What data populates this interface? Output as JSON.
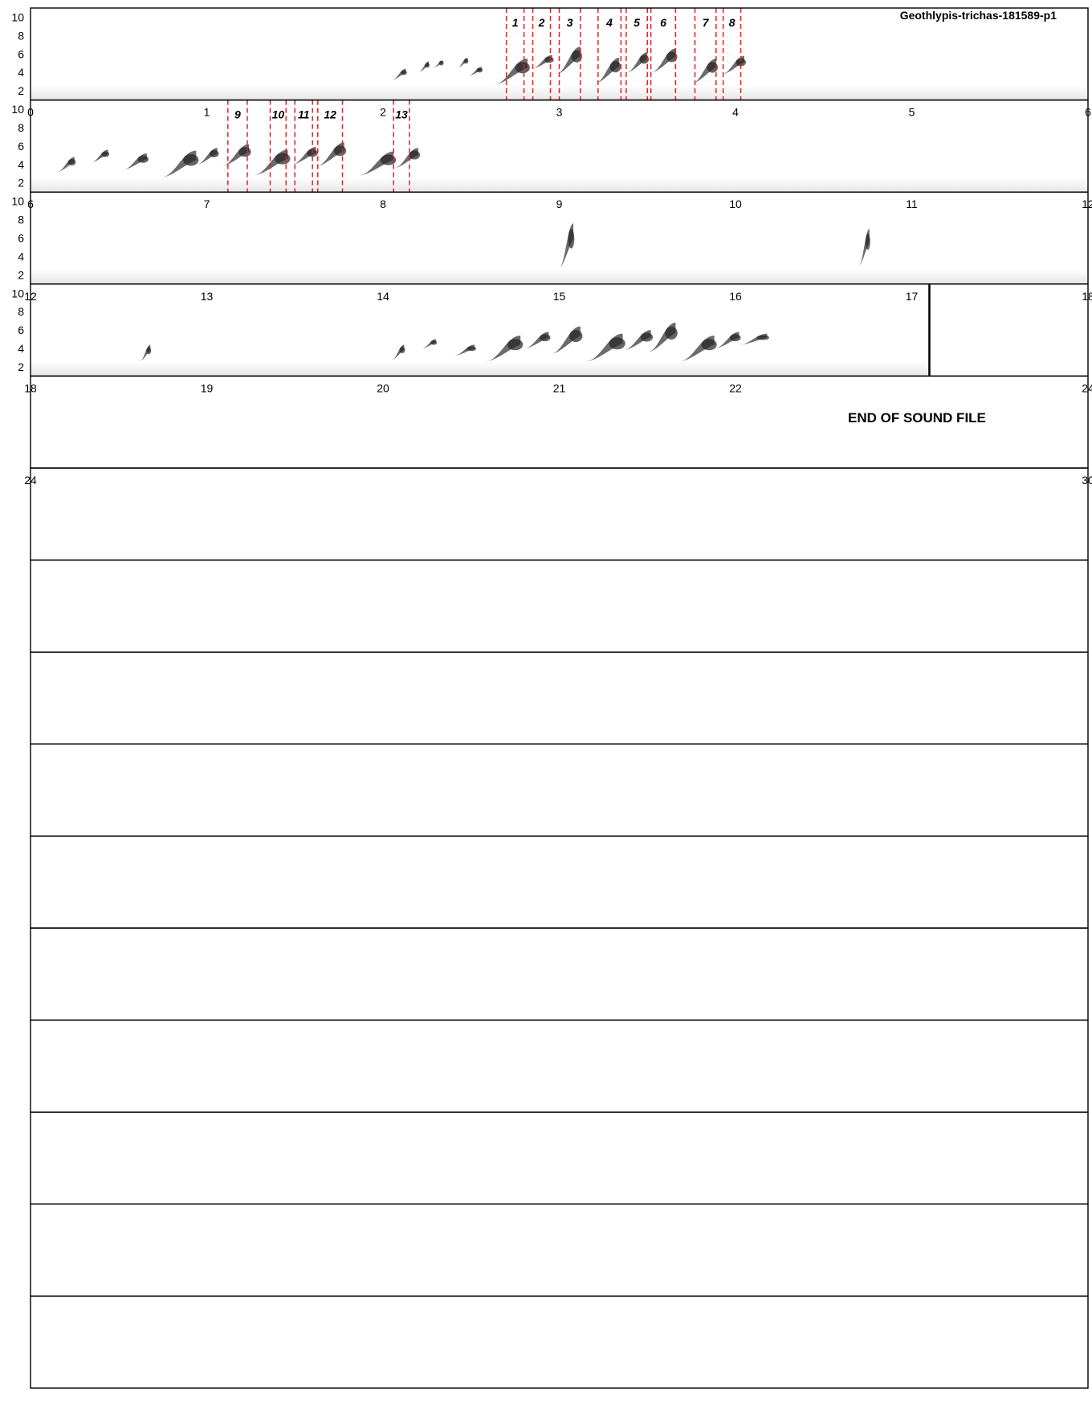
{
  "chart_data": {
    "type": "spectrogram",
    "title": "Geothlypis-trichas-181589-p1",
    "end_label": "END OF SOUND FILE",
    "end_time": 23.1,
    "y_ticks": [
      "10",
      "8",
      "6",
      "4",
      "2"
    ],
    "ylim": [
      1,
      11
    ],
    "seconds_per_row": 6,
    "row_count": 15,
    "x_tick_labels": [
      [
        "0",
        "1",
        "2",
        "3",
        "4",
        "5",
        "6"
      ],
      [
        "6",
        "7",
        "8",
        "9",
        "10",
        "11",
        "12"
      ],
      [
        "12",
        "13",
        "14",
        "15",
        "16",
        "17",
        "18"
      ],
      [
        "18",
        "19",
        "20",
        "21",
        "22",
        "",
        "24"
      ],
      [
        "24",
        "",
        "",
        "",
        "",
        "",
        "30"
      ]
    ],
    "segments": [
      {
        "label": "1",
        "start": 2.7,
        "end": 2.8
      },
      {
        "label": "2",
        "start": 2.85,
        "end": 2.95
      },
      {
        "label": "3",
        "start": 3.0,
        "end": 3.12
      },
      {
        "label": "4",
        "start": 3.22,
        "end": 3.35
      },
      {
        "label": "5",
        "start": 3.38,
        "end": 3.5
      },
      {
        "label": "6",
        "start": 3.52,
        "end": 3.66
      },
      {
        "label": "7",
        "start": 3.77,
        "end": 3.89
      },
      {
        "label": "8",
        "start": 3.93,
        "end": 4.03
      },
      {
        "label": "9",
        "start": 7.12,
        "end": 7.23
      },
      {
        "label": "10",
        "start": 7.36,
        "end": 7.45
      },
      {
        "label": "11",
        "start": 7.5,
        "end": 7.6
      },
      {
        "label": "12",
        "start": 7.63,
        "end": 7.77
      },
      {
        "label": "13",
        "start": 8.06,
        "end": 8.15
      }
    ],
    "sound_events": [
      {
        "t0": 2.05,
        "t1": 2.13,
        "f0": 3.2,
        "f1": 4.4
      },
      {
        "t0": 2.2,
        "t1": 2.26,
        "f0": 4.0,
        "f1": 5.2
      },
      {
        "t0": 2.28,
        "t1": 2.34,
        "f0": 4.5,
        "f1": 5.3
      },
      {
        "t0": 2.42,
        "t1": 2.48,
        "f0": 4.5,
        "f1": 5.6
      },
      {
        "t0": 2.48,
        "t1": 2.56,
        "f0": 3.6,
        "f1": 4.6
      },
      {
        "t0": 2.63,
        "t1": 2.82,
        "f0": 2.7,
        "f1": 5.5
      },
      {
        "t0": 2.84,
        "t1": 2.96,
        "f0": 4.4,
        "f1": 5.9
      },
      {
        "t0": 2.98,
        "t1": 3.12,
        "f0": 3.8,
        "f1": 6.8
      },
      {
        "t0": 3.2,
        "t1": 3.34,
        "f0": 2.8,
        "f1": 5.6
      },
      {
        "t0": 3.38,
        "t1": 3.5,
        "f0": 4.0,
        "f1": 6.2
      },
      {
        "t0": 3.52,
        "t1": 3.66,
        "f0": 4.0,
        "f1": 6.6
      },
      {
        "t0": 3.75,
        "t1": 3.89,
        "f0": 2.8,
        "f1": 5.5
      },
      {
        "t0": 3.92,
        "t1": 4.05,
        "f0": 3.8,
        "f1": 5.8
      },
      {
        "t0": 6.15,
        "t1": 6.25,
        "f0": 3.2,
        "f1": 4.8
      },
      {
        "t0": 6.34,
        "t1": 6.44,
        "f0": 4.2,
        "f1": 5.6
      },
      {
        "t0": 6.52,
        "t1": 6.66,
        "f0": 3.4,
        "f1": 5.2
      },
      {
        "t0": 6.74,
        "t1": 6.94,
        "f0": 2.6,
        "f1": 5.5
      },
      {
        "t0": 6.94,
        "t1": 7.06,
        "f0": 4.0,
        "f1": 5.8
      },
      {
        "t0": 7.08,
        "t1": 7.24,
        "f0": 3.8,
        "f1": 6.2
      },
      {
        "t0": 7.26,
        "t1": 7.46,
        "f0": 2.8,
        "f1": 5.6
      },
      {
        "t0": 7.48,
        "t1": 7.62,
        "f0": 4.0,
        "f1": 5.9
      },
      {
        "t0": 7.62,
        "t1": 7.78,
        "f0": 3.8,
        "f1": 6.4
      },
      {
        "t0": 7.86,
        "t1": 8.06,
        "f0": 2.8,
        "f1": 5.4
      },
      {
        "t0": 8.06,
        "t1": 8.2,
        "f0": 3.6,
        "f1": 5.8
      },
      {
        "t0": 15.0,
        "t1": 15.08,
        "f0": 2.8,
        "f1": 7.6
      },
      {
        "t0": 16.7,
        "t1": 16.76,
        "f0": 3.0,
        "f1": 7.0
      },
      {
        "t0": 18.62,
        "t1": 18.68,
        "f0": 2.6,
        "f1": 4.4
      },
      {
        "t0": 20.05,
        "t1": 20.12,
        "f0": 2.8,
        "f1": 4.4
      },
      {
        "t0": 20.22,
        "t1": 20.3,
        "f0": 4.0,
        "f1": 5.0
      },
      {
        "t0": 20.4,
        "t1": 20.52,
        "f0": 3.2,
        "f1": 4.4
      },
      {
        "t0": 20.58,
        "t1": 20.78,
        "f0": 2.6,
        "f1": 5.4
      },
      {
        "t0": 20.8,
        "t1": 20.94,
        "f0": 4.0,
        "f1": 5.8
      },
      {
        "t0": 20.95,
        "t1": 21.12,
        "f0": 3.4,
        "f1": 6.4
      },
      {
        "t0": 21.15,
        "t1": 21.36,
        "f0": 2.6,
        "f1": 5.6
      },
      {
        "t0": 21.36,
        "t1": 21.52,
        "f0": 3.8,
        "f1": 6.0
      },
      {
        "t0": 21.5,
        "t1": 21.66,
        "f0": 3.6,
        "f1": 6.8
      },
      {
        "t0": 21.68,
        "t1": 21.88,
        "f0": 2.6,
        "f1": 5.4
      },
      {
        "t0": 21.88,
        "t1": 22.02,
        "f0": 4.0,
        "f1": 5.8
      },
      {
        "t0": 22.02,
        "t1": 22.18,
        "f0": 4.4,
        "f1": 5.6
      }
    ]
  }
}
